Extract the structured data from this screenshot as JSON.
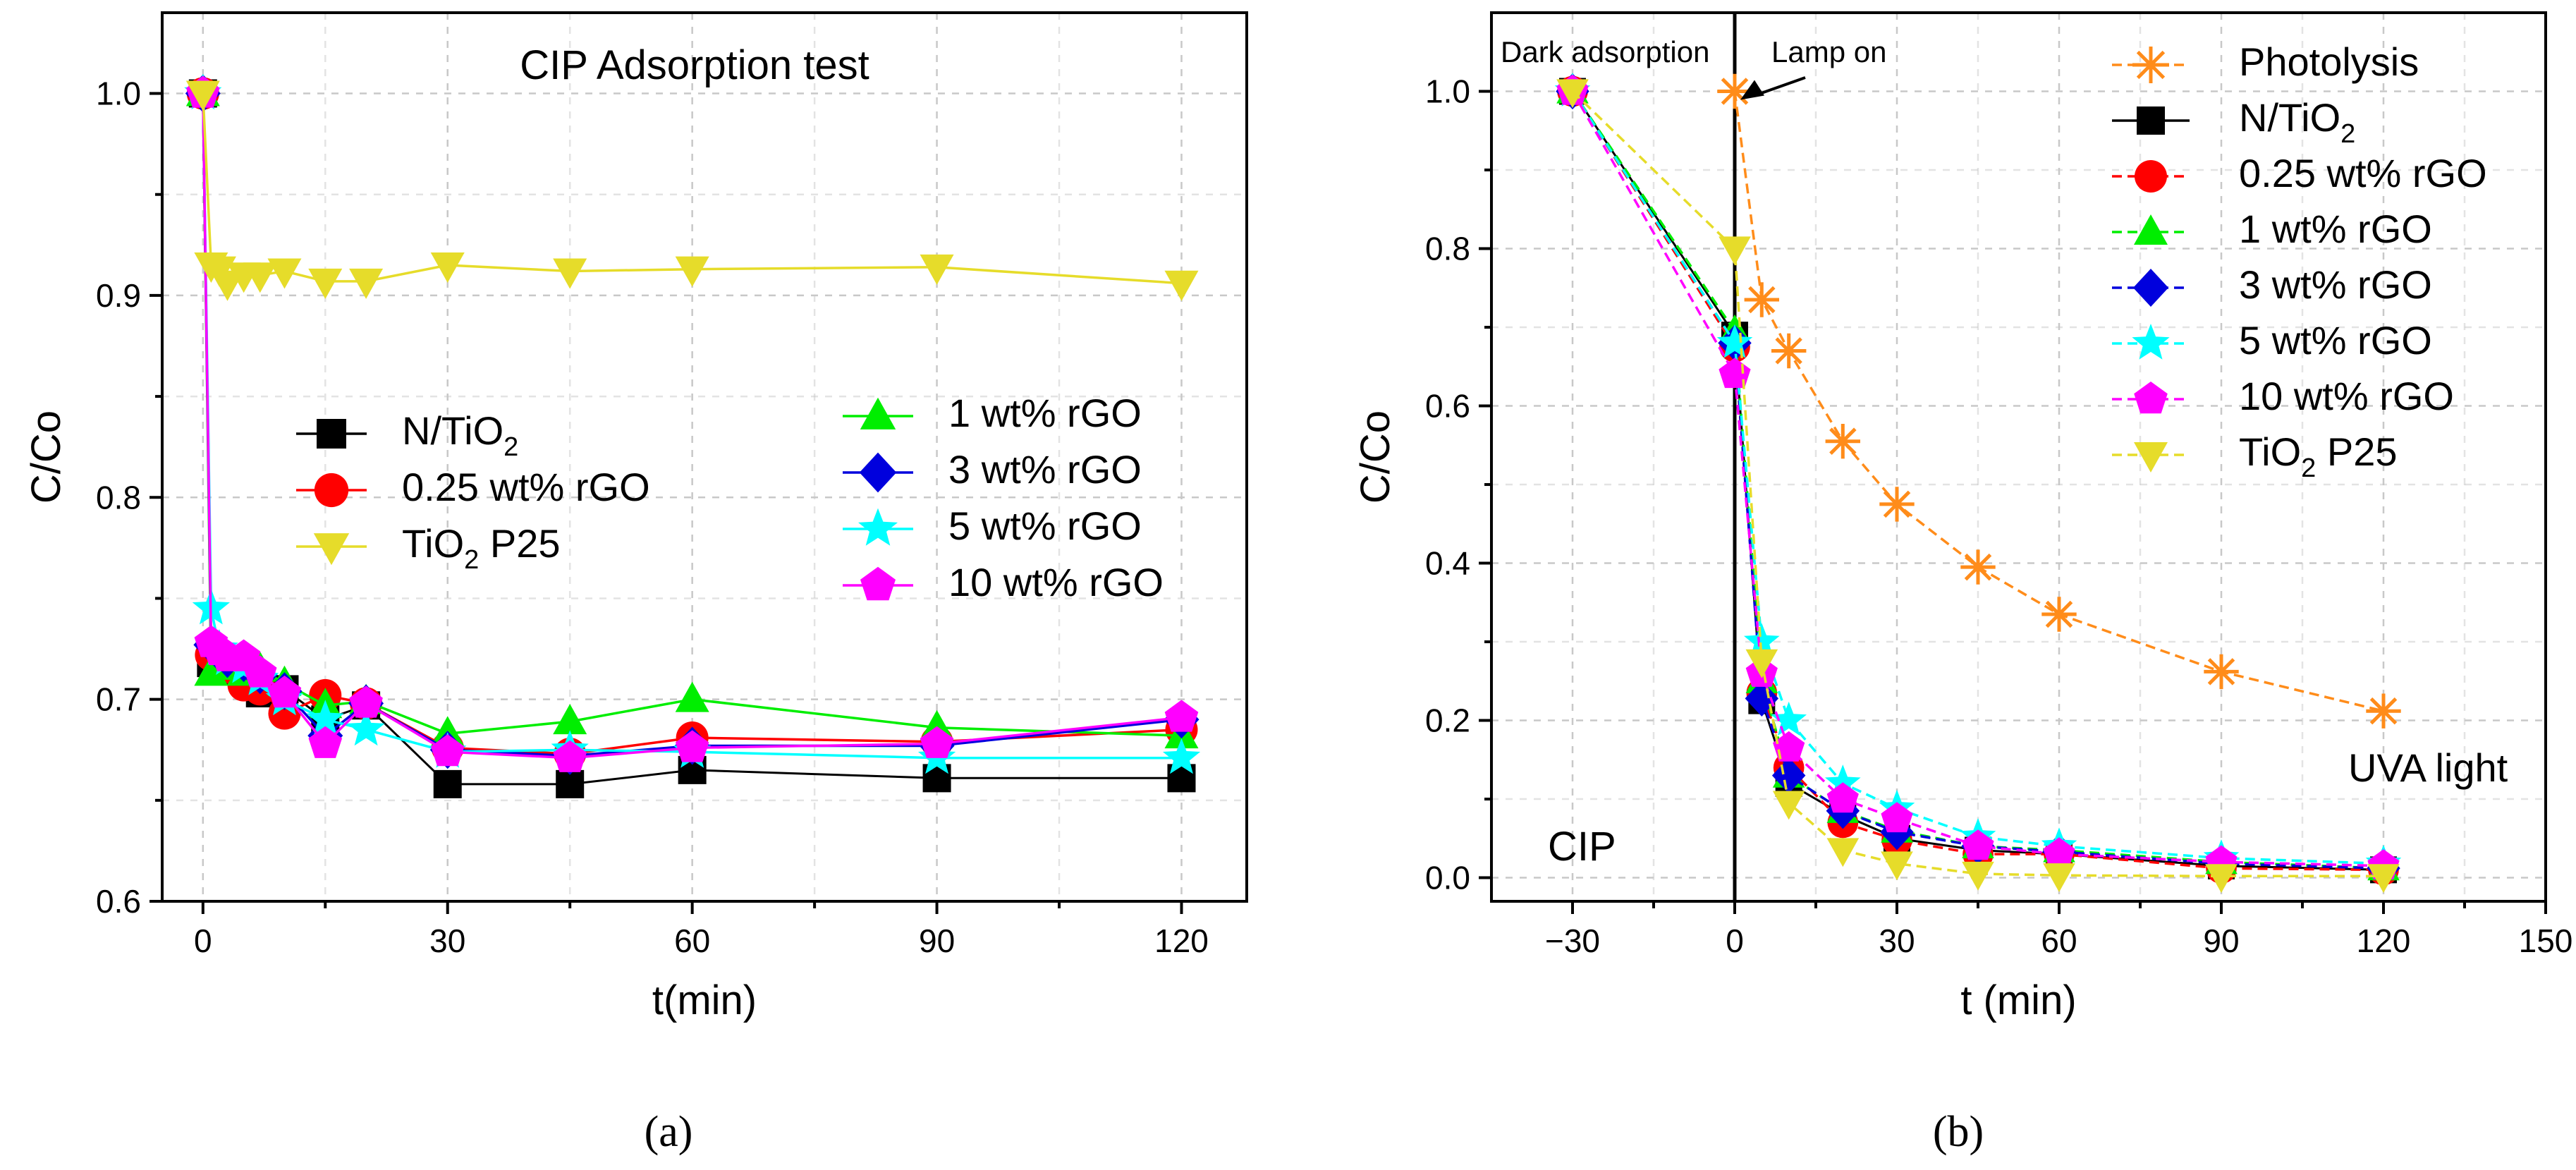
{
  "chart_data": [
    {
      "type": "line",
      "panel_label": "(a)",
      "title": "CIP Adsorption test",
      "xlabel": "t(min)",
      "ylabel": "C/Co",
      "xlim": [
        -5,
        128
      ],
      "ylim": [
        0.6,
        1.04
      ],
      "xticks": [
        0,
        30,
        60,
        90,
        120
      ],
      "yticks": [
        0.6,
        0.7,
        0.8,
        0.9,
        1.0
      ],
      "grid": true,
      "legend": [
        {
          "series": 0,
          "placement": "middle-left"
        },
        {
          "series": 1,
          "placement": "middle-left"
        },
        {
          "series": 6,
          "placement": "middle-left"
        },
        {
          "series": 2,
          "placement": "middle-right"
        },
        {
          "series": 3,
          "placement": "middle-right"
        },
        {
          "series": 4,
          "placement": "middle-right"
        },
        {
          "series": 5,
          "placement": "middle-right"
        }
      ],
      "series": [
        {
          "name": "N/TiO",
          "sub": "2",
          "suffix": "",
          "color": "#000000",
          "marker": "square",
          "x": [
            0,
            1,
            2,
            3,
            5,
            7,
            10,
            15,
            20,
            30,
            45,
            60,
            90,
            120
          ],
          "y": [
            1.0,
            0.718,
            0.715,
            0.714,
            0.712,
            0.703,
            0.705,
            0.69,
            0.697,
            0.658,
            0.658,
            0.665,
            0.661,
            0.661
          ]
        },
        {
          "name": "0.25 wt% rGO",
          "sub": "",
          "suffix": "",
          "color": "#ff0000",
          "marker": "circle",
          "x": [
            0,
            1,
            2,
            3,
            5,
            7,
            10,
            15,
            20,
            30,
            45,
            60,
            90,
            120
          ],
          "y": [
            1.0,
            0.722,
            0.718,
            0.716,
            0.707,
            0.705,
            0.693,
            0.702,
            0.698,
            0.676,
            0.673,
            0.681,
            0.679,
            0.685
          ]
        },
        {
          "name": "1 wt% rGO",
          "sub": "",
          "suffix": "",
          "color": "#00ee00",
          "marker": "triangle-up",
          "x": [
            0,
            1,
            2,
            3,
            5,
            7,
            10,
            15,
            20,
            30,
            45,
            60,
            90,
            120
          ],
          "y": [
            1.0,
            0.713,
            0.716,
            0.718,
            0.713,
            0.715,
            0.708,
            0.697,
            0.699,
            0.683,
            0.689,
            0.7,
            0.686,
            0.682
          ]
        },
        {
          "name": "3 wt% rGO",
          "sub": "",
          "suffix": "",
          "color": "#0000dd",
          "marker": "diamond",
          "x": [
            0,
            1,
            2,
            3,
            5,
            7,
            10,
            15,
            20,
            30,
            45,
            60,
            90,
            120
          ],
          "y": [
            1.0,
            0.727,
            0.723,
            0.72,
            0.718,
            0.712,
            0.704,
            0.682,
            0.698,
            0.675,
            0.672,
            0.677,
            0.677,
            0.69
          ]
        },
        {
          "name": "5 wt% rGO",
          "sub": "",
          "suffix": "",
          "color": "#00ffff",
          "marker": "star",
          "x": [
            0,
            1,
            2,
            3,
            5,
            7,
            10,
            15,
            20,
            30,
            45,
            60,
            90,
            120
          ],
          "y": [
            1.0,
            0.745,
            0.725,
            0.72,
            0.716,
            0.71,
            0.7,
            0.69,
            0.685,
            0.674,
            0.675,
            0.674,
            0.671,
            0.671
          ]
        },
        {
          "name": "10 wt% rGO",
          "sub": "",
          "suffix": "",
          "color": "#ff00ff",
          "marker": "pentagon",
          "x": [
            0,
            1,
            2,
            3,
            5,
            7,
            10,
            15,
            20,
            30,
            45,
            60,
            90,
            120
          ],
          "y": [
            1.0,
            0.728,
            0.724,
            0.721,
            0.721,
            0.713,
            0.703,
            0.678,
            0.698,
            0.674,
            0.671,
            0.676,
            0.678,
            0.691
          ]
        },
        {
          "name": "TiO",
          "sub": "2",
          "suffix": " P25",
          "color": "#e6dc2a",
          "marker": "triangle-down",
          "x": [
            0,
            1,
            2,
            3,
            5,
            7,
            10,
            15,
            20,
            30,
            45,
            60,
            90,
            120
          ],
          "y": [
            1.0,
            0.915,
            0.913,
            0.906,
            0.91,
            0.91,
            0.912,
            0.907,
            0.907,
            0.915,
            0.912,
            0.913,
            0.914,
            0.906
          ]
        }
      ]
    },
    {
      "type": "line",
      "panel_label": "(b)",
      "xlabel": "t (min)",
      "ylabel": "C/Co",
      "xlim": [
        -45,
        150
      ],
      "ylim": [
        -0.03,
        1.1
      ],
      "xticks": [
        -30,
        0,
        30,
        60,
        90,
        120,
        150
      ],
      "yticks": [
        0.0,
        0.2,
        0.4,
        0.6,
        0.8,
        1.0
      ],
      "grid": true,
      "vline_x": 0,
      "annotations": {
        "dark": "Dark adsorption",
        "lamp": "Lamp on",
        "light": "UVA light",
        "compound": "CIP"
      },
      "legend": [
        {
          "series": 0,
          "placement": "top-right"
        },
        {
          "series": 1,
          "placement": "top-right"
        },
        {
          "series": 2,
          "placement": "top-right"
        },
        {
          "series": 3,
          "placement": "top-right"
        },
        {
          "series": 4,
          "placement": "top-right"
        },
        {
          "series": 5,
          "placement": "top-right"
        },
        {
          "series": 6,
          "placement": "top-right"
        },
        {
          "series": 7,
          "placement": "top-right"
        }
      ],
      "series": [
        {
          "name": "Photolysis",
          "sub": "",
          "suffix": "",
          "color": "#ff8c1a",
          "marker": "asterisk",
          "x": [
            0,
            5,
            10,
            20,
            30,
            45,
            60,
            90,
            120
          ],
          "y": [
            1.0,
            0.735,
            0.67,
            0.555,
            0.475,
            0.395,
            0.335,
            0.262,
            0.212
          ]
        },
        {
          "name": "N/TiO",
          "sub": "2",
          "suffix": "",
          "color": "#000000",
          "marker": "square",
          "x": [
            -30,
            0,
            5,
            10,
            20,
            30,
            45,
            60,
            90,
            120
          ],
          "y": [
            1.0,
            0.69,
            0.225,
            0.12,
            0.08,
            0.05,
            0.035,
            0.03,
            0.015,
            0.01
          ]
        },
        {
          "name": "0.25 wt% rGO",
          "sub": "",
          "suffix": "",
          "color": "#ff0000",
          "marker": "circle",
          "x": [
            -30,
            0,
            5,
            10,
            20,
            30,
            45,
            60,
            90,
            120
          ],
          "y": [
            1.0,
            0.675,
            0.235,
            0.14,
            0.07,
            0.048,
            0.03,
            0.03,
            0.012,
            0.01
          ]
        },
        {
          "name": "1 wt% rGO",
          "sub": "",
          "suffix": "",
          "color": "#00ee00",
          "marker": "triangle-up",
          "x": [
            -30,
            0,
            5,
            10,
            20,
            30,
            45,
            60,
            90,
            120
          ],
          "y": [
            1.0,
            0.695,
            0.25,
            0.13,
            0.085,
            0.06,
            0.04,
            0.035,
            0.02,
            0.012
          ]
        },
        {
          "name": "3 wt% rGO",
          "sub": "",
          "suffix": "",
          "color": "#0000dd",
          "marker": "diamond",
          "x": [
            -30,
            0,
            5,
            10,
            20,
            30,
            45,
            60,
            90,
            120
          ],
          "y": [
            1.0,
            0.68,
            0.228,
            0.13,
            0.085,
            0.058,
            0.04,
            0.033,
            0.018,
            0.012
          ]
        },
        {
          "name": "5 wt% rGO",
          "sub": "",
          "suffix": "",
          "color": "#00ffff",
          "marker": "star",
          "x": [
            -30,
            0,
            5,
            10,
            20,
            30,
            45,
            60,
            90,
            120
          ],
          "y": [
            1.0,
            0.68,
            0.3,
            0.2,
            0.12,
            0.088,
            0.052,
            0.04,
            0.025,
            0.018
          ]
        },
        {
          "name": "10 wt% rGO",
          "sub": "",
          "suffix": "",
          "color": "#ff00ff",
          "marker": "pentagon",
          "x": [
            -30,
            0,
            5,
            10,
            20,
            30,
            45,
            60,
            90,
            120
          ],
          "y": [
            1.0,
            0.64,
            0.26,
            0.165,
            0.1,
            0.075,
            0.04,
            0.03,
            0.02,
            0.015
          ]
        },
        {
          "name": "TiO",
          "sub": "2",
          "suffix": " P25",
          "color": "#e6dc2a",
          "marker": "triangle-down",
          "x": [
            -30,
            0,
            5,
            10,
            20,
            30,
            45,
            60,
            90,
            120
          ],
          "y": [
            1.0,
            0.8,
            0.275,
            0.095,
            0.035,
            0.018,
            0.005,
            0.003,
            0.002,
            0.002
          ]
        }
      ]
    }
  ]
}
